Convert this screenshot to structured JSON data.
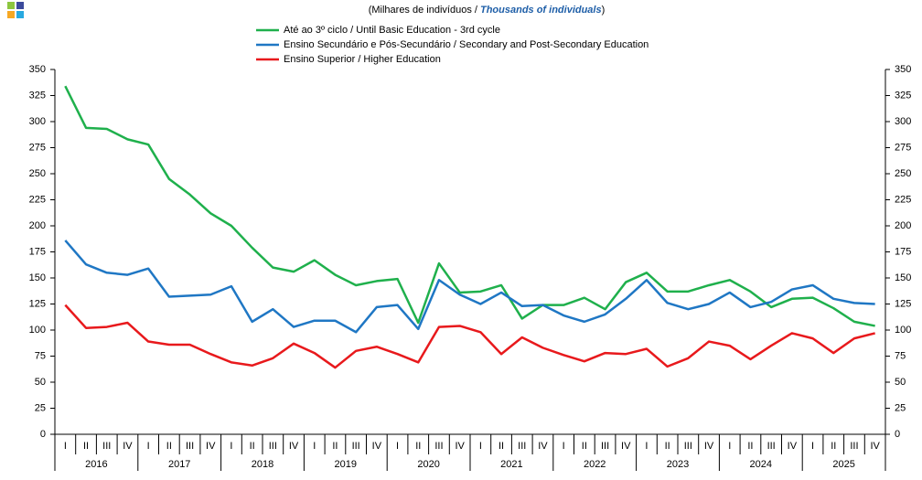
{
  "chart_data": {
    "type": "line",
    "subtitle": [
      "(Milhares de indivíduos / ",
      "Thousands of individuals",
      ")"
    ],
    "categories": [
      "I",
      "II",
      "III",
      "IV",
      "I",
      "II",
      "III",
      "IV",
      "I",
      "II",
      "III",
      "IV",
      "I",
      "II",
      "III",
      "IV",
      "I",
      "II",
      "III",
      "IV",
      "I",
      "II",
      "III",
      "IV",
      "I",
      "II",
      "III",
      "IV",
      "I",
      "II",
      "III",
      "IV",
      "I",
      "II",
      "III",
      "IV",
      "I",
      "II",
      "III",
      "IV"
    ],
    "year_labels": [
      "2016",
      "2017",
      "2018",
      "2019",
      "2020",
      "2021",
      "2022",
      "2023",
      "2024",
      "2025"
    ],
    "series": [
      {
        "name": "Até ao 3º ciclo / Until Basic Education - 3rd cycle",
        "color": "#1fb04c",
        "values": [
          334,
          294,
          293,
          283,
          278,
          245,
          230,
          212,
          200,
          179,
          160,
          156,
          167,
          153,
          143,
          147,
          149,
          107,
          164,
          136,
          137,
          143,
          111,
          124,
          124,
          131,
          120,
          146,
          155,
          137,
          137,
          143,
          148,
          137,
          122,
          130,
          131,
          121,
          108,
          104
        ]
      },
      {
        "name": "Ensino Secundário e Pós-Secundário / Secondary and Post-Secondary Education",
        "color": "#1f77c4",
        "values": [
          186,
          163,
          155,
          153,
          159,
          132,
          133,
          134,
          142,
          108,
          120,
          103,
          109,
          109,
          98,
          122,
          124,
          101,
          148,
          134,
          125,
          136,
          123,
          124,
          114,
          108,
          115,
          130,
          148,
          126,
          120,
          125,
          136,
          122,
          127,
          139,
          143,
          130,
          126,
          125
        ]
      },
      {
        "name": "Ensino Superior / Higher Education",
        "color": "#e8191c",
        "values": [
          124,
          102,
          103,
          107,
          89,
          86,
          86,
          77,
          69,
          66,
          73,
          87,
          78,
          64,
          80,
          84,
          77,
          69,
          103,
          104,
          98,
          77,
          93,
          83,
          76,
          70,
          78,
          77,
          82,
          65,
          73,
          89,
          85,
          72,
          85,
          97,
          92,
          78,
          92,
          97
        ]
      }
    ],
    "ylim": [
      0,
      350
    ],
    "yticks": [
      0,
      25,
      50,
      75,
      100,
      125,
      150,
      175,
      200,
      225,
      250,
      275,
      300,
      325,
      350
    ],
    "grid": false
  }
}
